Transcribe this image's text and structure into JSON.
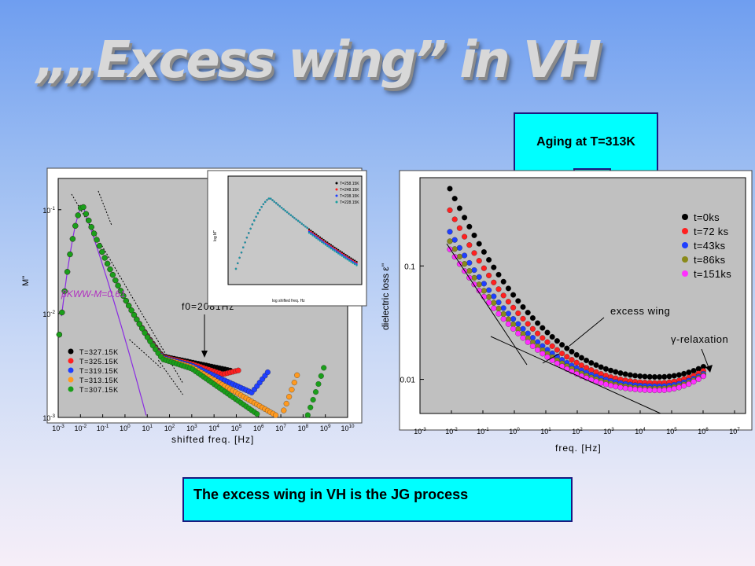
{
  "slide": {
    "title": "„„Excess  wing”  in VH",
    "aging_callout": "Aging at T=313K",
    "conclusion": "The excess wing in VH is the JG process"
  },
  "colors": {
    "callout_fill": "#00ffff",
    "black": "#000000",
    "red": "#ff2020",
    "blue": "#1f3fff",
    "orange": "#ff9a20",
    "green": "#1a9e1a",
    "olive": "#8a8a1a",
    "magenta": "#ff30ff",
    "fit_line": "#8a2be2"
  },
  "chart_data": [
    {
      "type": "scatter",
      "xscale": "log",
      "yscale": "log",
      "xlabel": "shifted freq. [Hz]",
      "ylabel": "M''",
      "xlim": [
        0.001,
        10000000000.0
      ],
      "ylim": [
        0.001,
        0.2
      ],
      "xtick_labels": [
        "10-3",
        "10-2",
        "10-1",
        "100",
        "101",
        "102",
        "103",
        "104",
        "105",
        "106",
        "107",
        "108",
        "109",
        "1010"
      ],
      "ytick_labels": [
        "10-1",
        "10-2",
        "10-3"
      ],
      "annotations": {
        "beta": "βKWW-M=0.61",
        "f0": "f0=2081Hz"
      },
      "legend": {
        "position": "bottom-left",
        "entries": [
          "T=327.15K",
          "T=325.15K",
          "T=319.15K",
          "T=313.15K",
          "T=307.15K"
        ]
      },
      "series": [
        {
          "name": "T=327.15K",
          "color": "#000000",
          "end_log_f": 4.8,
          "end_uptick": 0
        },
        {
          "name": "T=325.15K",
          "color": "#ff2020",
          "end_log_f": 5.2,
          "end_uptick": 0.1
        },
        {
          "name": "T=319.15K",
          "color": "#1f3fff",
          "end_log_f": 6.5,
          "end_uptick": 0.3
        },
        {
          "name": "T=313.15K",
          "color": "#ff9a20",
          "end_log_f": 7.8,
          "end_uptick": 0.35
        },
        {
          "name": "T=307.15K",
          "color": "#1a9e1a",
          "end_log_f": 9.0,
          "end_uptick": 0.35
        }
      ],
      "inset": {
        "xlabel": "log shifted freq. Hz",
        "ylabel": "log M''",
        "legend": [
          "T=258.15K",
          "T=248.15K",
          "T=238.15K",
          "T=228.15K"
        ]
      }
    },
    {
      "type": "scatter",
      "xscale": "log",
      "yscale": "log",
      "xlabel": "freq. [Hz]",
      "ylabel": "dielectric loss ε''",
      "xlim": [
        0.001,
        10000000.0
      ],
      "ylim": [
        0.005,
        0.6
      ],
      "xtick_labels": [
        "10-3",
        "10-2",
        "10-1",
        "100",
        "101",
        "102",
        "103",
        "104",
        "105",
        "106",
        "107"
      ],
      "ytick_labels": [
        "0.1",
        "0.01"
      ],
      "annotations": {
        "excess_wing": "excess wing",
        "gamma": "γ-relaxation"
      },
      "legend": {
        "position": "top-right",
        "entries": [
          "t=0ks",
          "t=72 ks",
          "t=43ks",
          "t=86ks",
          "t=151ks"
        ]
      },
      "series": [
        {
          "name": "t=0ks",
          "color": "#000000",
          "y_start": 0.48,
          "y_min": 0.0105,
          "y_end": 0.0135
        },
        {
          "name": "t=72 ks",
          "color": "#ff2020",
          "y_start": 0.31,
          "y_min": 0.0093,
          "y_end": 0.0125
        },
        {
          "name": "t=43ks",
          "color": "#1f3fff",
          "y_start": 0.2,
          "y_min": 0.0087,
          "y_end": 0.0118
        },
        {
          "name": "t=86ks",
          "color": "#8a8a1a",
          "y_start": 0.165,
          "y_min": 0.0083,
          "y_end": 0.0115
        },
        {
          "name": "t=151ks",
          "color": "#ff30ff",
          "y_start": 0.14,
          "y_min": 0.008,
          "y_end": 0.0113
        }
      ]
    }
  ]
}
